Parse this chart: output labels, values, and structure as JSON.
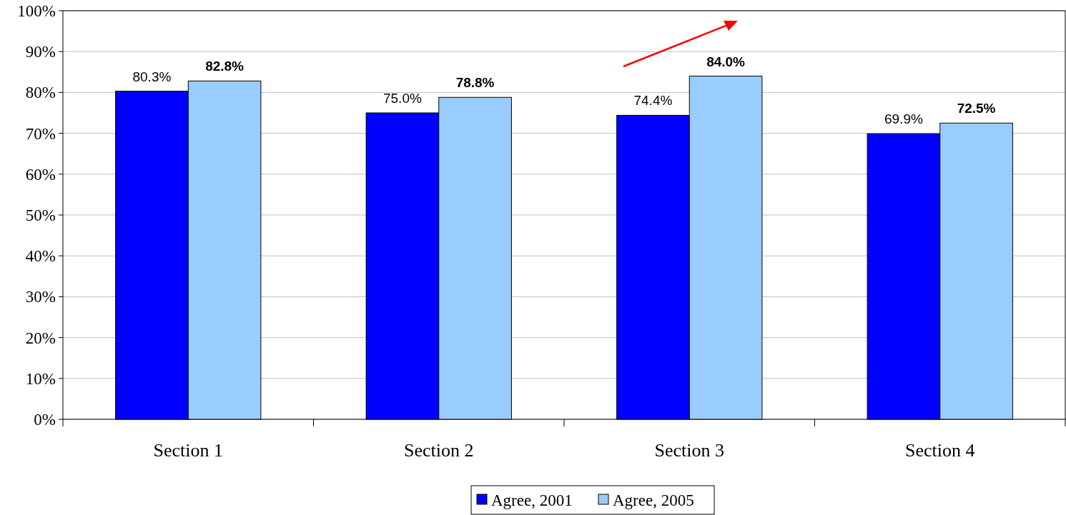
{
  "chart_data": {
    "type": "bar",
    "categories": [
      "Section 1",
      "Section 2",
      "Section 3",
      "Section 4"
    ],
    "series": [
      {
        "name": "Agree, 2001",
        "color": "#0000ff",
        "values": [
          80.3,
          75.0,
          74.4,
          69.9
        ],
        "value_labels": [
          "80.3%",
          "75.0%",
          "74.4%",
          "69.9%"
        ]
      },
      {
        "name": "Agree, 2005",
        "color": "#99ccff",
        "values": [
          82.8,
          78.8,
          84.0,
          72.5
        ],
        "value_labels": [
          "82.8%",
          "78.8%",
          "84.0%",
          "72.5%"
        ]
      }
    ],
    "ylim": [
      0,
      100
    ],
    "yticks": [
      {
        "value": 0,
        "label": "0%"
      },
      {
        "value": 10,
        "label": "10%"
      },
      {
        "value": 20,
        "label": "20%"
      },
      {
        "value": 30,
        "label": "30%"
      },
      {
        "value": 40,
        "label": "40%"
      },
      {
        "value": 50,
        "label": "50%"
      },
      {
        "value": 60,
        "label": "60%"
      },
      {
        "value": 70,
        "label": "70%"
      },
      {
        "value": 80,
        "label": "80%"
      },
      {
        "value": 90,
        "label": "90%"
      },
      {
        "value": 100,
        "label": "100%"
      }
    ],
    "grid": "y",
    "legend": "bottom"
  }
}
